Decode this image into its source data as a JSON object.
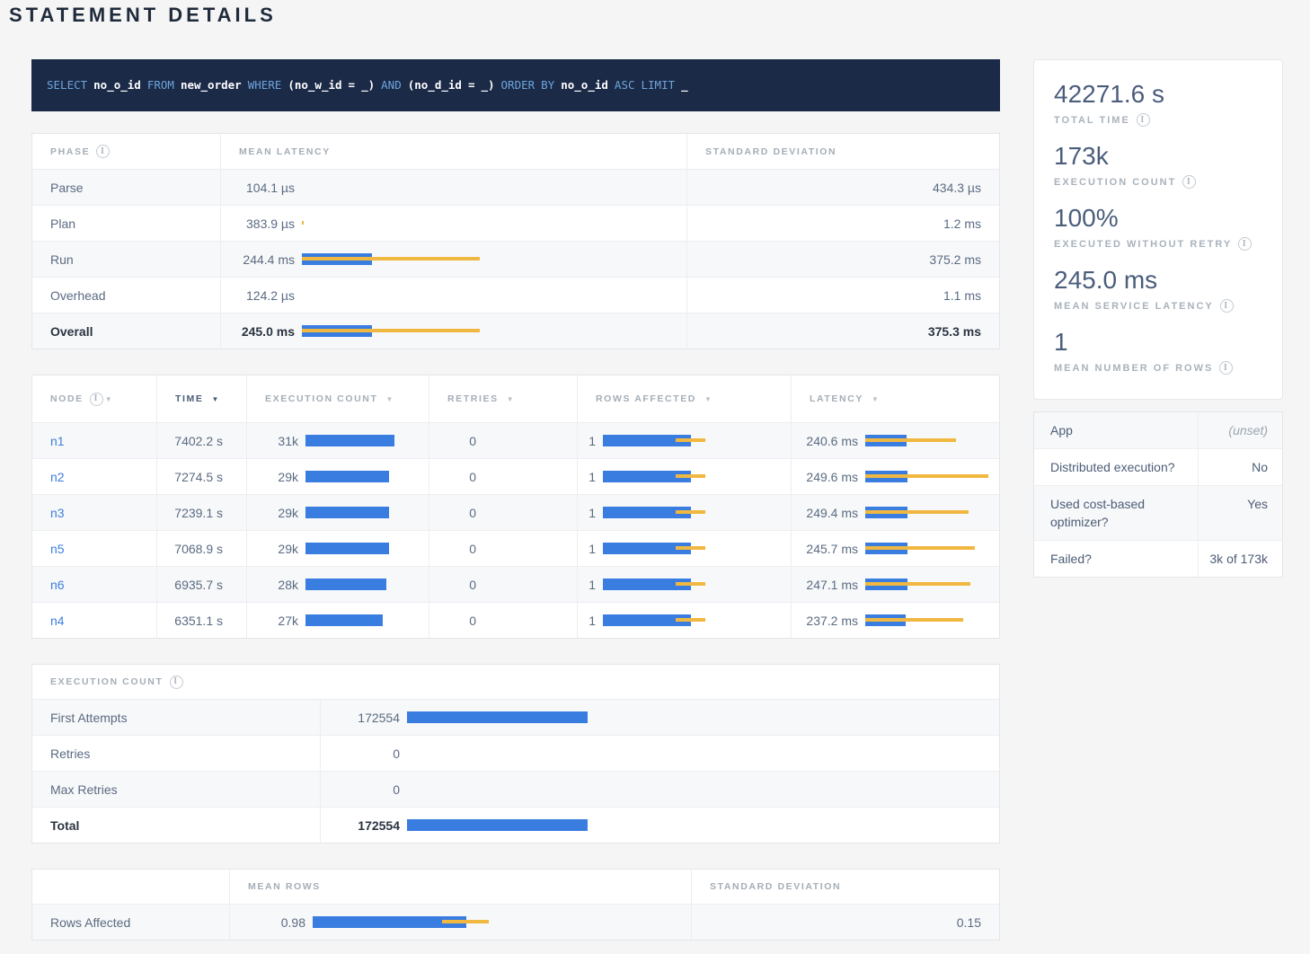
{
  "page": {
    "title": "STATEMENT DETAILS"
  },
  "sql": {
    "tokens": [
      {
        "text": "SELECT",
        "kw": true
      },
      {
        "text": "no_o_id",
        "kw": false
      },
      {
        "text": "FROM",
        "kw": true
      },
      {
        "text": "new_order",
        "kw": false
      },
      {
        "text": "WHERE",
        "kw": true
      },
      {
        "text": "(no_w_id",
        "kw": false
      },
      {
        "text": "=",
        "kw": false
      },
      {
        "text": "_)",
        "kw": false
      },
      {
        "text": "AND",
        "kw": true
      },
      {
        "text": "(no_d_id",
        "kw": false
      },
      {
        "text": "=",
        "kw": false
      },
      {
        "text": "_)",
        "kw": false
      },
      {
        "text": "ORDER",
        "kw": true
      },
      {
        "text": "BY",
        "kw": true
      },
      {
        "text": "no_o_id",
        "kw": false
      },
      {
        "text": "ASC",
        "kw": true
      },
      {
        "text": "LIMIT",
        "kw": true
      },
      {
        "text": "_",
        "kw": false
      }
    ]
  },
  "phase_table": {
    "columns": {
      "phase": "PHASE",
      "mean": "MEAN LATENCY",
      "std": "STANDARD DEVIATION"
    },
    "rows": [
      {
        "phase": "Parse",
        "mean": "104.1 µs",
        "mean_ms": 0.1041,
        "std": "434.3 µs",
        "std_ms": 0.4343,
        "emphasis": false
      },
      {
        "phase": "Plan",
        "mean": "383.9 µs",
        "mean_ms": 0.3839,
        "std": "1.2 ms",
        "std_ms": 1.2,
        "emphasis": false
      },
      {
        "phase": "Run",
        "mean": "244.4 ms",
        "mean_ms": 244.4,
        "std": "375.2 ms",
        "std_ms": 375.2,
        "emphasis": false
      },
      {
        "phase": "Overhead",
        "mean": "124.2 µs",
        "mean_ms": 0.1242,
        "std": "1.1 ms",
        "std_ms": 1.1,
        "emphasis": false
      },
      {
        "phase": "Overall",
        "mean": "245.0 ms",
        "mean_ms": 245.0,
        "std": "375.3 ms",
        "std_ms": 375.3,
        "emphasis": true
      }
    ]
  },
  "node_table": {
    "columns": [
      {
        "label": "NODE",
        "info": true,
        "sort": true,
        "active": false
      },
      {
        "label": "TIME",
        "info": false,
        "sort": true,
        "active": true
      },
      {
        "label": "EXECUTION COUNT",
        "info": false,
        "sort": true,
        "active": false
      },
      {
        "label": "RETRIES",
        "info": false,
        "sort": true,
        "active": false
      },
      {
        "label": "ROWS AFFECTED",
        "info": false,
        "sort": true,
        "active": false
      },
      {
        "label": "LATENCY",
        "info": false,
        "sort": true,
        "active": false
      }
    ],
    "rows": [
      {
        "node": "n1",
        "time": "7402.2 s",
        "count": "31k",
        "count_k": 31,
        "retries": "0",
        "rows": "1",
        "rows_mean": 1,
        "rows_std": 0.17,
        "latency": "240.6 ms",
        "latency_ms": 240.6,
        "latency_std_ms": 290
      },
      {
        "node": "n2",
        "time": "7274.5 s",
        "count": "29k",
        "count_k": 29,
        "retries": "0",
        "rows": "1",
        "rows_mean": 1,
        "rows_std": 0.17,
        "latency": "249.6 ms",
        "latency_ms": 249.6,
        "latency_std_ms": 470
      },
      {
        "node": "n3",
        "time": "7239.1 s",
        "count": "29k",
        "count_k": 29,
        "retries": "0",
        "rows": "1",
        "rows_mean": 1,
        "rows_std": 0.17,
        "latency": "249.4 ms",
        "latency_ms": 249.4,
        "latency_std_ms": 357
      },
      {
        "node": "n5",
        "time": "7068.9 s",
        "count": "29k",
        "count_k": 29,
        "retries": "0",
        "rows": "1",
        "rows_mean": 1,
        "rows_std": 0.17,
        "latency": "245.7 ms",
        "latency_ms": 245.7,
        "latency_std_ms": 397
      },
      {
        "node": "n6",
        "time": "6935.7 s",
        "count": "28k",
        "count_k": 28,
        "retries": "0",
        "rows": "1",
        "rows_mean": 1,
        "rows_std": 0.17,
        "latency": "247.1 ms",
        "latency_ms": 247.1,
        "latency_std_ms": 370
      },
      {
        "node": "n4",
        "time": "6351.1 s",
        "count": "27k",
        "count_k": 27,
        "retries": "0",
        "rows": "1",
        "rows_mean": 1,
        "rows_std": 0.17,
        "latency": "237.2 ms",
        "latency_ms": 237.2,
        "latency_std_ms": 337
      }
    ]
  },
  "execution_table": {
    "title": "EXECUTION COUNT",
    "max": 172554,
    "rows": [
      {
        "label": "First Attempts",
        "value": "172554",
        "num": 172554,
        "emphasis": false
      },
      {
        "label": "Retries",
        "value": "0",
        "num": 0,
        "emphasis": false
      },
      {
        "label": "Max Retries",
        "value": "0",
        "num": 0,
        "emphasis": false
      },
      {
        "label": "Total",
        "value": "172554",
        "num": 172554,
        "emphasis": true
      }
    ]
  },
  "rows_table": {
    "columns": {
      "blank": "",
      "mean": "MEAN ROWS",
      "std": "STANDARD DEVIATION"
    },
    "rows": [
      {
        "label": "Rows Affected",
        "mean": "0.98",
        "mean_val": 0.98,
        "std": "0.15",
        "std_val": 0.15
      }
    ]
  },
  "summary_stats": {
    "items": [
      {
        "value": "42271.6 s",
        "label": "TOTAL TIME"
      },
      {
        "value": "173k",
        "label": "EXECUTION COUNT"
      },
      {
        "value": "100%",
        "label": "EXECUTED WITHOUT RETRY"
      },
      {
        "value": "245.0 ms",
        "label": "MEAN SERVICE LATENCY"
      },
      {
        "value": "1",
        "label": "MEAN NUMBER OF ROWS"
      }
    ]
  },
  "details_table": {
    "rows": [
      {
        "label": "App",
        "value": "(unset)",
        "muted": true
      },
      {
        "label": "Distributed execution?",
        "value": "No",
        "muted": false
      },
      {
        "label": "Used cost-based optimizer?",
        "value": "Yes",
        "muted": false
      },
      {
        "label": "Failed?",
        "value": "3k of 173k",
        "muted": false
      }
    ]
  },
  "colors": {
    "bar_blue": "#3A7DE1",
    "bar_gold": "#F0B840",
    "link_blue": "#3E7EDE",
    "sql_bg": "#1B2A47",
    "sql_keyword": "#6EA4DC",
    "page_bg": "#F5F5F6"
  }
}
